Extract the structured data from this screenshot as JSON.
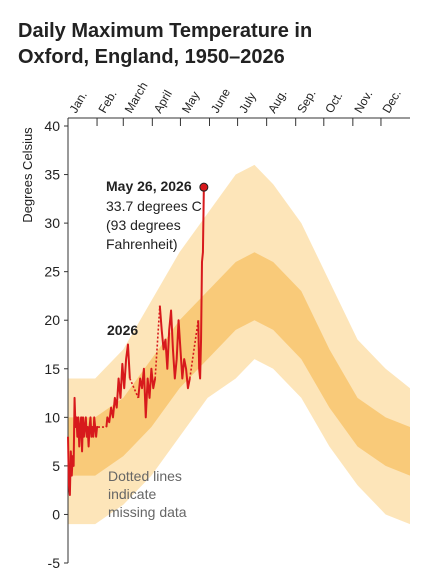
{
  "chart_data": {
    "type": "line",
    "title_lines": [
      "Daily Maximum Temperature in",
      "Oxford, England, 1950–2026"
    ],
    "y_label": "Degrees Celsius",
    "xlim": [
      1,
      366
    ],
    "ylim": [
      -5,
      40
    ],
    "yticks": [
      -5,
      0,
      5,
      10,
      15,
      20,
      25,
      30,
      35,
      40
    ],
    "xticks": [
      {
        "value": 1,
        "label": "Jan."
      },
      {
        "value": 32,
        "label": "Feb."
      },
      {
        "value": 60,
        "label": "March"
      },
      {
        "value": 91,
        "label": "April"
      },
      {
        "value": 121,
        "label": "May"
      },
      {
        "value": 152,
        "label": "June"
      },
      {
        "value": 182,
        "label": "July"
      },
      {
        "value": 213,
        "label": "Aug."
      },
      {
        "value": 244,
        "label": "Sep."
      },
      {
        "value": 274,
        "label": "Oct."
      },
      {
        "value": 305,
        "label": "Nov."
      },
      {
        "value": 335,
        "label": "Dec."
      }
    ],
    "range_band": {
      "color": "#fbd38a",
      "inner_color": "#f6b545",
      "x": [
        1,
        30,
        60,
        90,
        120,
        150,
        180,
        200,
        220,
        250,
        280,
        310,
        340,
        366
      ],
      "low": [
        -1,
        -1,
        1,
        4,
        8,
        12,
        14,
        16,
        15,
        12,
        7,
        3,
        0,
        -1
      ],
      "high": [
        14,
        14,
        17,
        22,
        27,
        31,
        35,
        36,
        34,
        30,
        24,
        18,
        15,
        13
      ],
      "inner_low": [
        4,
        4,
        6,
        9,
        13,
        16,
        19,
        20,
        19,
        16,
        11,
        7,
        5,
        4
      ],
      "inner_high": [
        10,
        10,
        12,
        16,
        20,
        23,
        26,
        27,
        26,
        23,
        17,
        12,
        10,
        9
      ]
    },
    "series": [
      {
        "name": "2026",
        "color": "#d7191c",
        "x": [
          1,
          2,
          3,
          4,
          5,
          6,
          7,
          8,
          9,
          10,
          11,
          12,
          13,
          14,
          15,
          16,
          17,
          18,
          19,
          20,
          21,
          22,
          23,
          24,
          25,
          26,
          27,
          28,
          29,
          30,
          31,
          32,
          33,
          34,
          42,
          43,
          45,
          47,
          49,
          51,
          53,
          55,
          57,
          59,
          61,
          63,
          65,
          67,
          70,
          76,
          78,
          80,
          82,
          84,
          86,
          88,
          90,
          92,
          94,
          96,
          99,
          101,
          103,
          105,
          107,
          109,
          111,
          113,
          115,
          117,
          119,
          121,
          123,
          125,
          127,
          129,
          131,
          134,
          140,
          141,
          142,
          143,
          144,
          145,
          146
        ],
        "values": [
          8,
          3,
          2,
          6.5,
          4,
          6,
          5,
          12,
          9,
          10,
          8,
          10,
          7,
          9,
          10,
          6.5,
          10,
          8,
          9,
          10,
          8,
          9,
          7,
          9,
          10,
          8,
          9,
          8,
          10,
          9,
          8,
          9,
          9,
          null,
          9,
          10,
          9.5,
          11,
          10,
          12,
          11,
          14,
          12,
          15.5,
          13,
          16,
          17.5,
          14,
          null,
          12,
          14,
          13,
          15,
          10,
          14,
          12,
          15,
          13,
          14,
          null,
          21.5,
          19,
          17,
          18,
          15,
          19,
          21,
          17,
          14,
          16,
          20,
          17,
          14,
          16,
          15,
          13,
          14,
          null,
          20,
          15,
          14,
          18,
          26,
          27,
          33.7
        ]
      }
    ],
    "annotation": {
      "date": "May 26, 2026",
      "lines": [
        "33.7 degrees C",
        "(93 degrees",
        "Fahrenheit)"
      ]
    },
    "note_lines": [
      "Dotted lines",
      "indicate",
      "missing data"
    ]
  }
}
